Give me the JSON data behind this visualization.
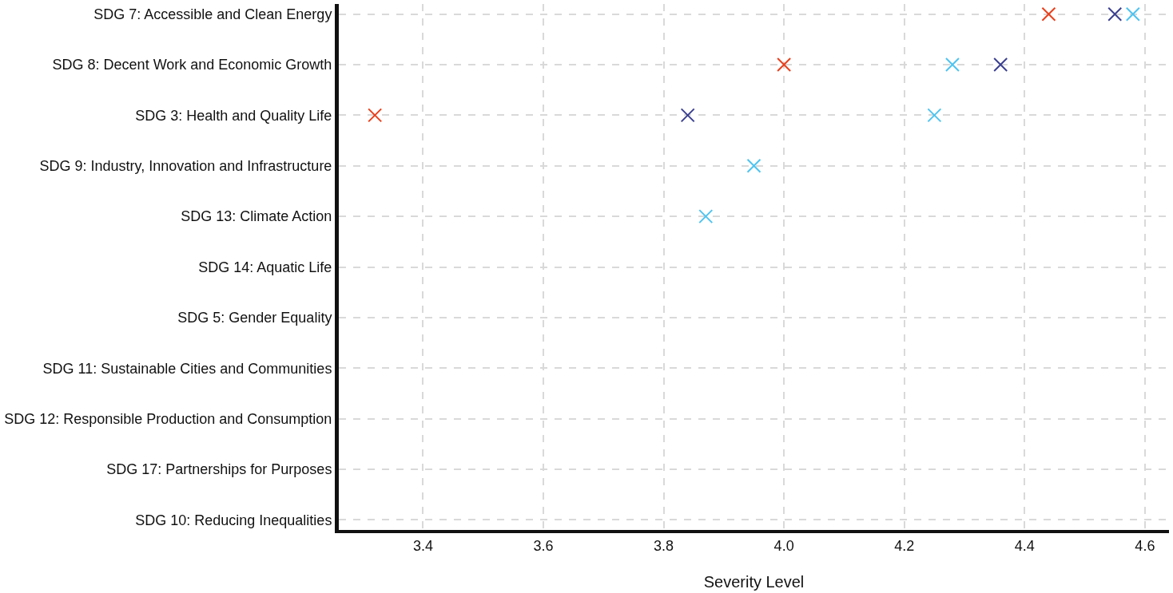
{
  "chart_data": {
    "type": "scatter",
    "xlabel": "Severity Level",
    "categories": [
      "SDG 7: Accessible and Clean Energy",
      "SDG 8: Decent Work and Economic Growth",
      "SDG 3: Health and Quality Life",
      "SDG 9: Industry, Innovation and Infrastructure",
      "SDG 13: Climate Action",
      "SDG 14: Aquatic Life",
      "SDG 5: Gender Equality",
      "SDG 11: Sustainable Cities and Communities",
      "SDG 12: Responsible Production and Consumption",
      "SDG 17: Partnerships for Purposes",
      "SDG 10: Reducing Inequalities"
    ],
    "orientation": "horizontal",
    "series": [
      {
        "color": "#e8401c",
        "values": [
          4.44,
          4.0,
          3.32,
          null,
          null,
          null,
          null,
          null,
          null,
          null,
          null
        ]
      },
      {
        "color": "#3a3f8f",
        "values": [
          4.55,
          4.36,
          3.84,
          null,
          null,
          null,
          null,
          null,
          null,
          null,
          null
        ]
      },
      {
        "color": "#4fc3f0",
        "values": [
          4.58,
          4.28,
          4.25,
          3.95,
          3.87,
          null,
          null,
          null,
          null,
          null,
          null
        ]
      }
    ],
    "xlim": [
      3.26,
      4.64
    ],
    "xticks": [
      3.4,
      3.6,
      3.8,
      {
        "value": 4.0,
        "label": "4.0"
      },
      4.2,
      4.4,
      4.6
    ],
    "grid": true,
    "marker": "cross"
  }
}
